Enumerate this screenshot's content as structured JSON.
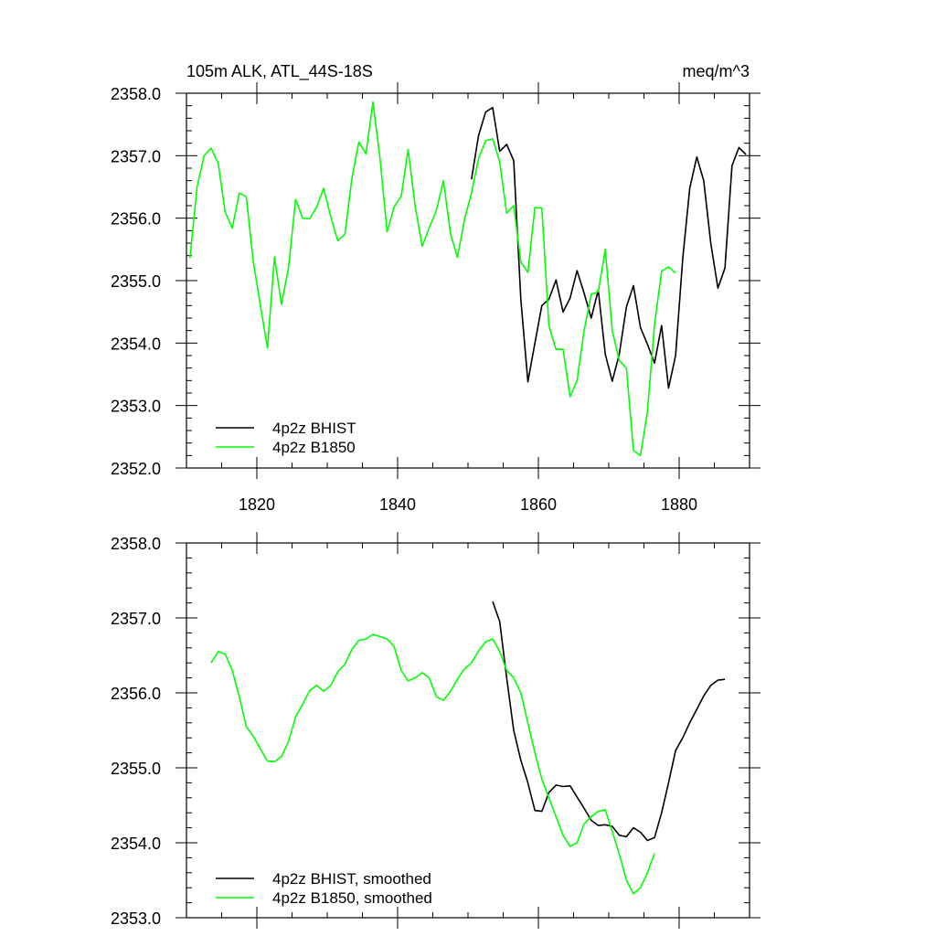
{
  "chart_data": [
    {
      "type": "line",
      "title_left": "105m ALK, ATL_44S-18S",
      "title_right": "meq/m^3",
      "xlim": [
        1810,
        1890
      ],
      "ylim": [
        2352.0,
        2358.0
      ],
      "xticks": [
        1820,
        1840,
        1860,
        1880
      ],
      "xtick_labels": [
        "1820",
        "1840",
        "1860",
        "1880"
      ],
      "yticks": [
        2352,
        2353,
        2354,
        2355,
        2356,
        2357,
        2358
      ],
      "ytick_labels": [
        "2352.0",
        "2353.0",
        "2354.0",
        "2355.0",
        "2356.0",
        "2357.0",
        "2358.0"
      ],
      "legend_position": "bottom-left",
      "series": [
        {
          "name": "4p2z BHIST",
          "color": "#000000",
          "x": [
            1850.5,
            1851.5,
            1852.5,
            1853.5,
            1854.5,
            1855.5,
            1856.5,
            1857.5,
            1858.5,
            1859.5,
            1860.5,
            1861.5,
            1862.5,
            1863.5,
            1864.5,
            1865.5,
            1866.5,
            1867.5,
            1868.5,
            1869.5,
            1870.5,
            1871.5,
            1872.5,
            1873.5,
            1874.5,
            1875.5,
            1876.5,
            1877.5,
            1878.5,
            1879.5,
            1880.5,
            1881.5,
            1882.5,
            1883.5,
            1884.5,
            1885.5,
            1886.5,
            1887.5,
            1888.5,
            1889.5
          ],
          "y": [
            2356.62,
            2357.32,
            2357.7,
            2357.77,
            2357.07,
            2357.18,
            2356.92,
            2354.7,
            2353.38,
            2354.0,
            2354.6,
            2354.7,
            2355.01,
            2354.5,
            2354.72,
            2355.16,
            2354.8,
            2354.4,
            2354.85,
            2353.82,
            2353.39,
            2353.82,
            2354.58,
            2354.92,
            2354.25,
            2353.98,
            2353.68,
            2354.28,
            2353.28,
            2353.8,
            2355.35,
            2356.48,
            2356.98,
            2356.6,
            2355.6,
            2354.88,
            2355.2,
            2356.84,
            2357.13,
            2357.02
          ]
        },
        {
          "name": "4p2z B1850",
          "color": "#00ff00",
          "x": [
            1810.5,
            1811.5,
            1812.5,
            1813.5,
            1814.5,
            1815.5,
            1816.5,
            1817.5,
            1818.5,
            1819.5,
            1820.5,
            1821.5,
            1822.5,
            1823.5,
            1824.5,
            1825.5,
            1826.5,
            1827.5,
            1828.5,
            1829.5,
            1830.5,
            1831.5,
            1832.5,
            1833.5,
            1834.5,
            1835.5,
            1836.5,
            1837.5,
            1838.5,
            1839.5,
            1840.5,
            1841.5,
            1842.5,
            1843.5,
            1844.5,
            1845.5,
            1846.5,
            1847.5,
            1848.5,
            1849.5,
            1850.5,
            1851.5,
            1852.5,
            1853.5,
            1854.5,
            1855.5,
            1856.5,
            1857.5,
            1858.5,
            1859.5,
            1860.5,
            1861.5,
            1862.5,
            1863.5,
            1864.5,
            1865.5,
            1866.5,
            1867.5,
            1868.5,
            1869.5,
            1870.5,
            1871.5,
            1872.5,
            1873.5,
            1874.5,
            1875.5,
            1876.5,
            1877.5,
            1878.5,
            1879.5
          ],
          "y": [
            2355.36,
            2356.5,
            2357.0,
            2357.12,
            2356.88,
            2356.1,
            2355.84,
            2356.4,
            2356.35,
            2355.3,
            2354.6,
            2353.92,
            2355.38,
            2354.62,
            2355.2,
            2356.3,
            2356.0,
            2355.99,
            2356.18,
            2356.48,
            2356.02,
            2355.64,
            2355.74,
            2356.64,
            2357.22,
            2357.03,
            2357.86,
            2356.95,
            2355.78,
            2356.18,
            2356.35,
            2357.1,
            2356.18,
            2355.55,
            2355.85,
            2356.12,
            2356.6,
            2355.76,
            2355.37,
            2355.98,
            2356.4,
            2356.95,
            2357.24,
            2357.27,
            2356.9,
            2356.08,
            2356.2,
            2355.3,
            2355.13,
            2356.17,
            2356.16,
            2354.28,
            2353.9,
            2353.9,
            2353.14,
            2353.4,
            2354.2,
            2354.78,
            2354.82,
            2355.5,
            2354.2,
            2353.72,
            2353.6,
            2352.28,
            2352.2,
            2352.9,
            2354.3,
            2355.15,
            2355.22,
            2355.12
          ]
        }
      ]
    },
    {
      "type": "line",
      "title_left": "",
      "title_right": "",
      "xlim": [
        1810,
        1890
      ],
      "ylim": [
        2353.0,
        2358.0
      ],
      "xticks": [
        1820,
        1840,
        1860,
        1880
      ],
      "xtick_labels": [],
      "yticks": [
        2353,
        2354,
        2355,
        2356,
        2357,
        2358
      ],
      "ytick_labels": [
        "2353.0",
        "2354.0",
        "2355.0",
        "2356.0",
        "2357.0",
        "2358.0"
      ],
      "legend_position": "bottom-left",
      "series": [
        {
          "name": "4p2z BHIST, smoothed",
          "color": "#000000",
          "x": [
            1853.5,
            1854.5,
            1855.5,
            1856.5,
            1857.5,
            1858.5,
            1859.5,
            1860.5,
            1861.5,
            1862.5,
            1863.5,
            1864.5,
            1865.5,
            1866.5,
            1867.5,
            1868.5,
            1869.5,
            1870.5,
            1871.5,
            1872.5,
            1873.5,
            1874.5,
            1875.5,
            1876.5,
            1877.5,
            1878.5,
            1879.5,
            1880.5,
            1881.5,
            1882.5,
            1883.5,
            1884.5,
            1885.5,
            1886.5
          ],
          "y": [
            2357.22,
            2356.95,
            2356.2,
            2355.5,
            2355.1,
            2354.8,
            2354.43,
            2354.42,
            2354.67,
            2354.77,
            2354.75,
            2354.76,
            2354.61,
            2354.46,
            2354.3,
            2354.23,
            2354.24,
            2354.22,
            2354.1,
            2354.08,
            2354.2,
            2354.14,
            2354.03,
            2354.07,
            2354.4,
            2354.8,
            2355.23,
            2355.4,
            2355.6,
            2355.78,
            2355.96,
            2356.1,
            2356.17,
            2356.18
          ]
        },
        {
          "name": "4p2z B1850, smoothed",
          "color": "#00ff00",
          "x": [
            1813.5,
            1814.5,
            1815.5,
            1816.5,
            1817.5,
            1818.5,
            1819.5,
            1820.5,
            1821.5,
            1822.5,
            1823.5,
            1824.5,
            1825.5,
            1826.5,
            1827.5,
            1828.5,
            1829.5,
            1830.5,
            1831.5,
            1832.5,
            1833.5,
            1834.5,
            1835.5,
            1836.5,
            1837.5,
            1838.5,
            1839.5,
            1840.5,
            1841.5,
            1842.5,
            1843.5,
            1844.5,
            1845.5,
            1846.5,
            1847.5,
            1848.5,
            1849.5,
            1850.5,
            1851.5,
            1852.5,
            1853.5,
            1854.5,
            1855.5,
            1856.5,
            1857.5,
            1858.5,
            1859.5,
            1860.5,
            1861.5,
            1862.5,
            1863.5,
            1864.5,
            1865.5,
            1866.5,
            1867.5,
            1868.5,
            1869.5,
            1870.5,
            1871.5,
            1872.5,
            1873.5,
            1874.5,
            1875.5,
            1876.5
          ],
          "y": [
            2356.4,
            2356.55,
            2356.52,
            2356.3,
            2355.95,
            2355.55,
            2355.42,
            2355.25,
            2355.09,
            2355.08,
            2355.15,
            2355.35,
            2355.68,
            2355.85,
            2356.03,
            2356.1,
            2356.02,
            2356.1,
            2356.28,
            2356.38,
            2356.58,
            2356.7,
            2356.72,
            2356.78,
            2356.75,
            2356.72,
            2356.62,
            2356.3,
            2356.16,
            2356.2,
            2356.27,
            2356.2,
            2355.95,
            2355.9,
            2356.02,
            2356.18,
            2356.32,
            2356.4,
            2356.56,
            2356.68,
            2356.72,
            2356.55,
            2356.3,
            2356.2,
            2356.0,
            2355.6,
            2355.2,
            2354.85,
            2354.6,
            2354.35,
            2354.1,
            2353.95,
            2354.0,
            2354.25,
            2354.35,
            2354.42,
            2354.44,
            2354.15,
            2353.85,
            2353.5,
            2353.32,
            2353.4,
            2353.6,
            2353.86
          ]
        }
      ]
    }
  ]
}
